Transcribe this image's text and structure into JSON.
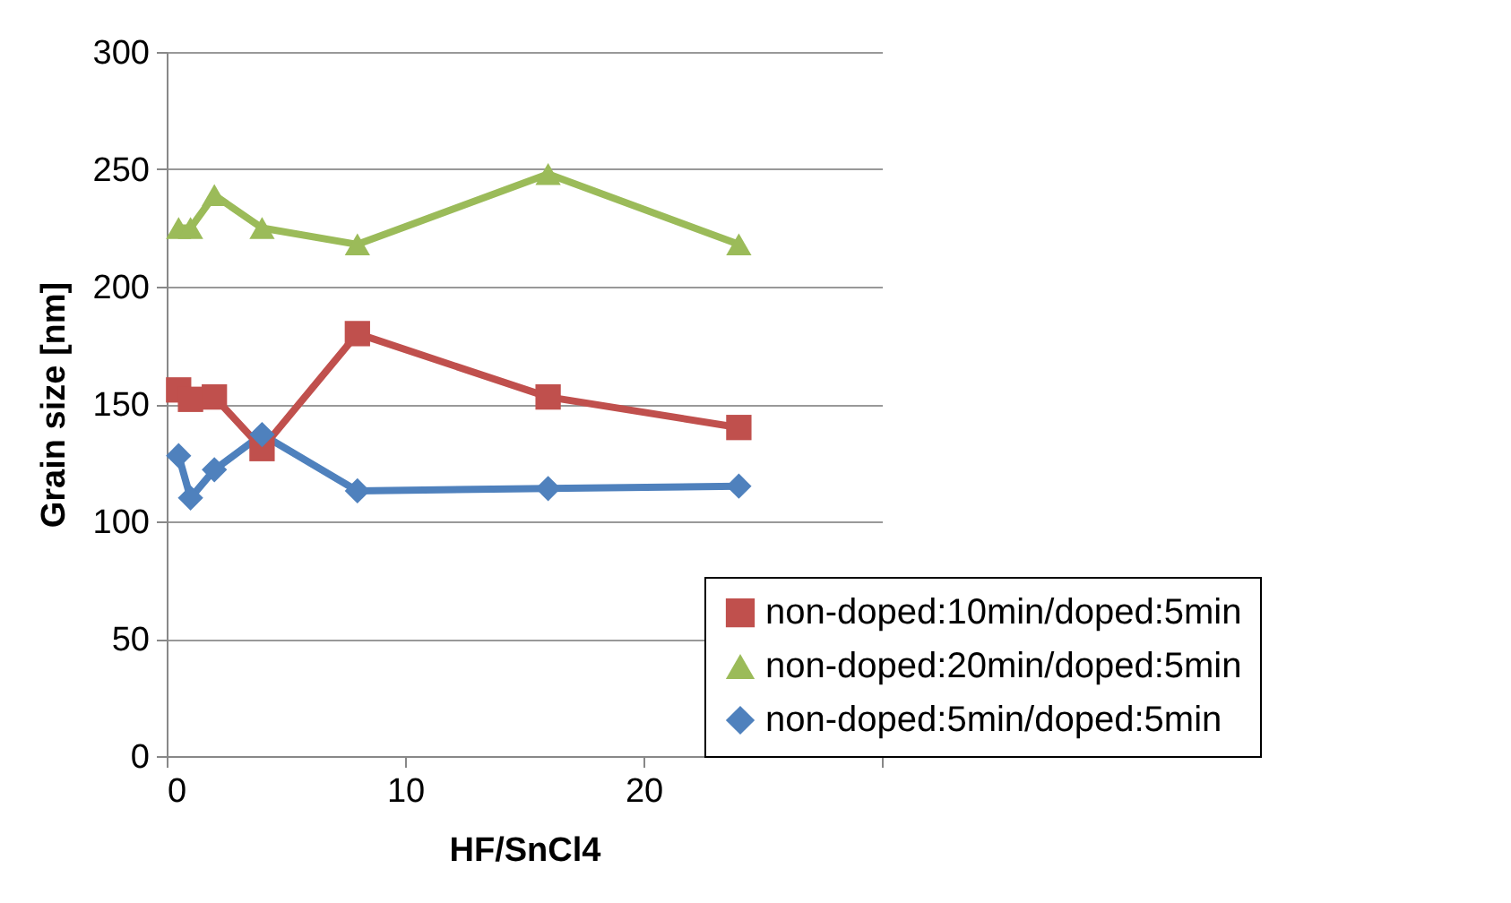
{
  "chart_data": {
    "type": "line",
    "xlabel": "HF/SnCl4",
    "ylabel": "Grain size [nm]",
    "x": [
      0.5,
      1,
      2,
      4,
      8,
      16,
      24
    ],
    "series": [
      {
        "name": "non-doped:10min/doped:5min",
        "color": "#c0504d",
        "marker": "square",
        "values": [
          156,
          152,
          153,
          131,
          180,
          153,
          140
        ]
      },
      {
        "name": "non-doped:20min/doped:5min",
        "color": "#9bbb59",
        "marker": "triangle",
        "values": [
          225,
          225,
          239,
          225,
          218,
          248,
          218
        ]
      },
      {
        "name": "non-doped:5min/doped:5min",
        "color": "#4f81bd",
        "marker": "diamond",
        "values": [
          128,
          110,
          122,
          137,
          113,
          114,
          115
        ]
      }
    ],
    "xlim": [
      0,
      30
    ],
    "xticks": [
      0,
      10,
      20,
      {
        "value": 30,
        "label": null
      }
    ],
    "ylim": [
      0,
      300
    ],
    "yticks": [
      0,
      50,
      100,
      150,
      200,
      250,
      300
    ],
    "grid": "y",
    "legend": "bottom right"
  }
}
